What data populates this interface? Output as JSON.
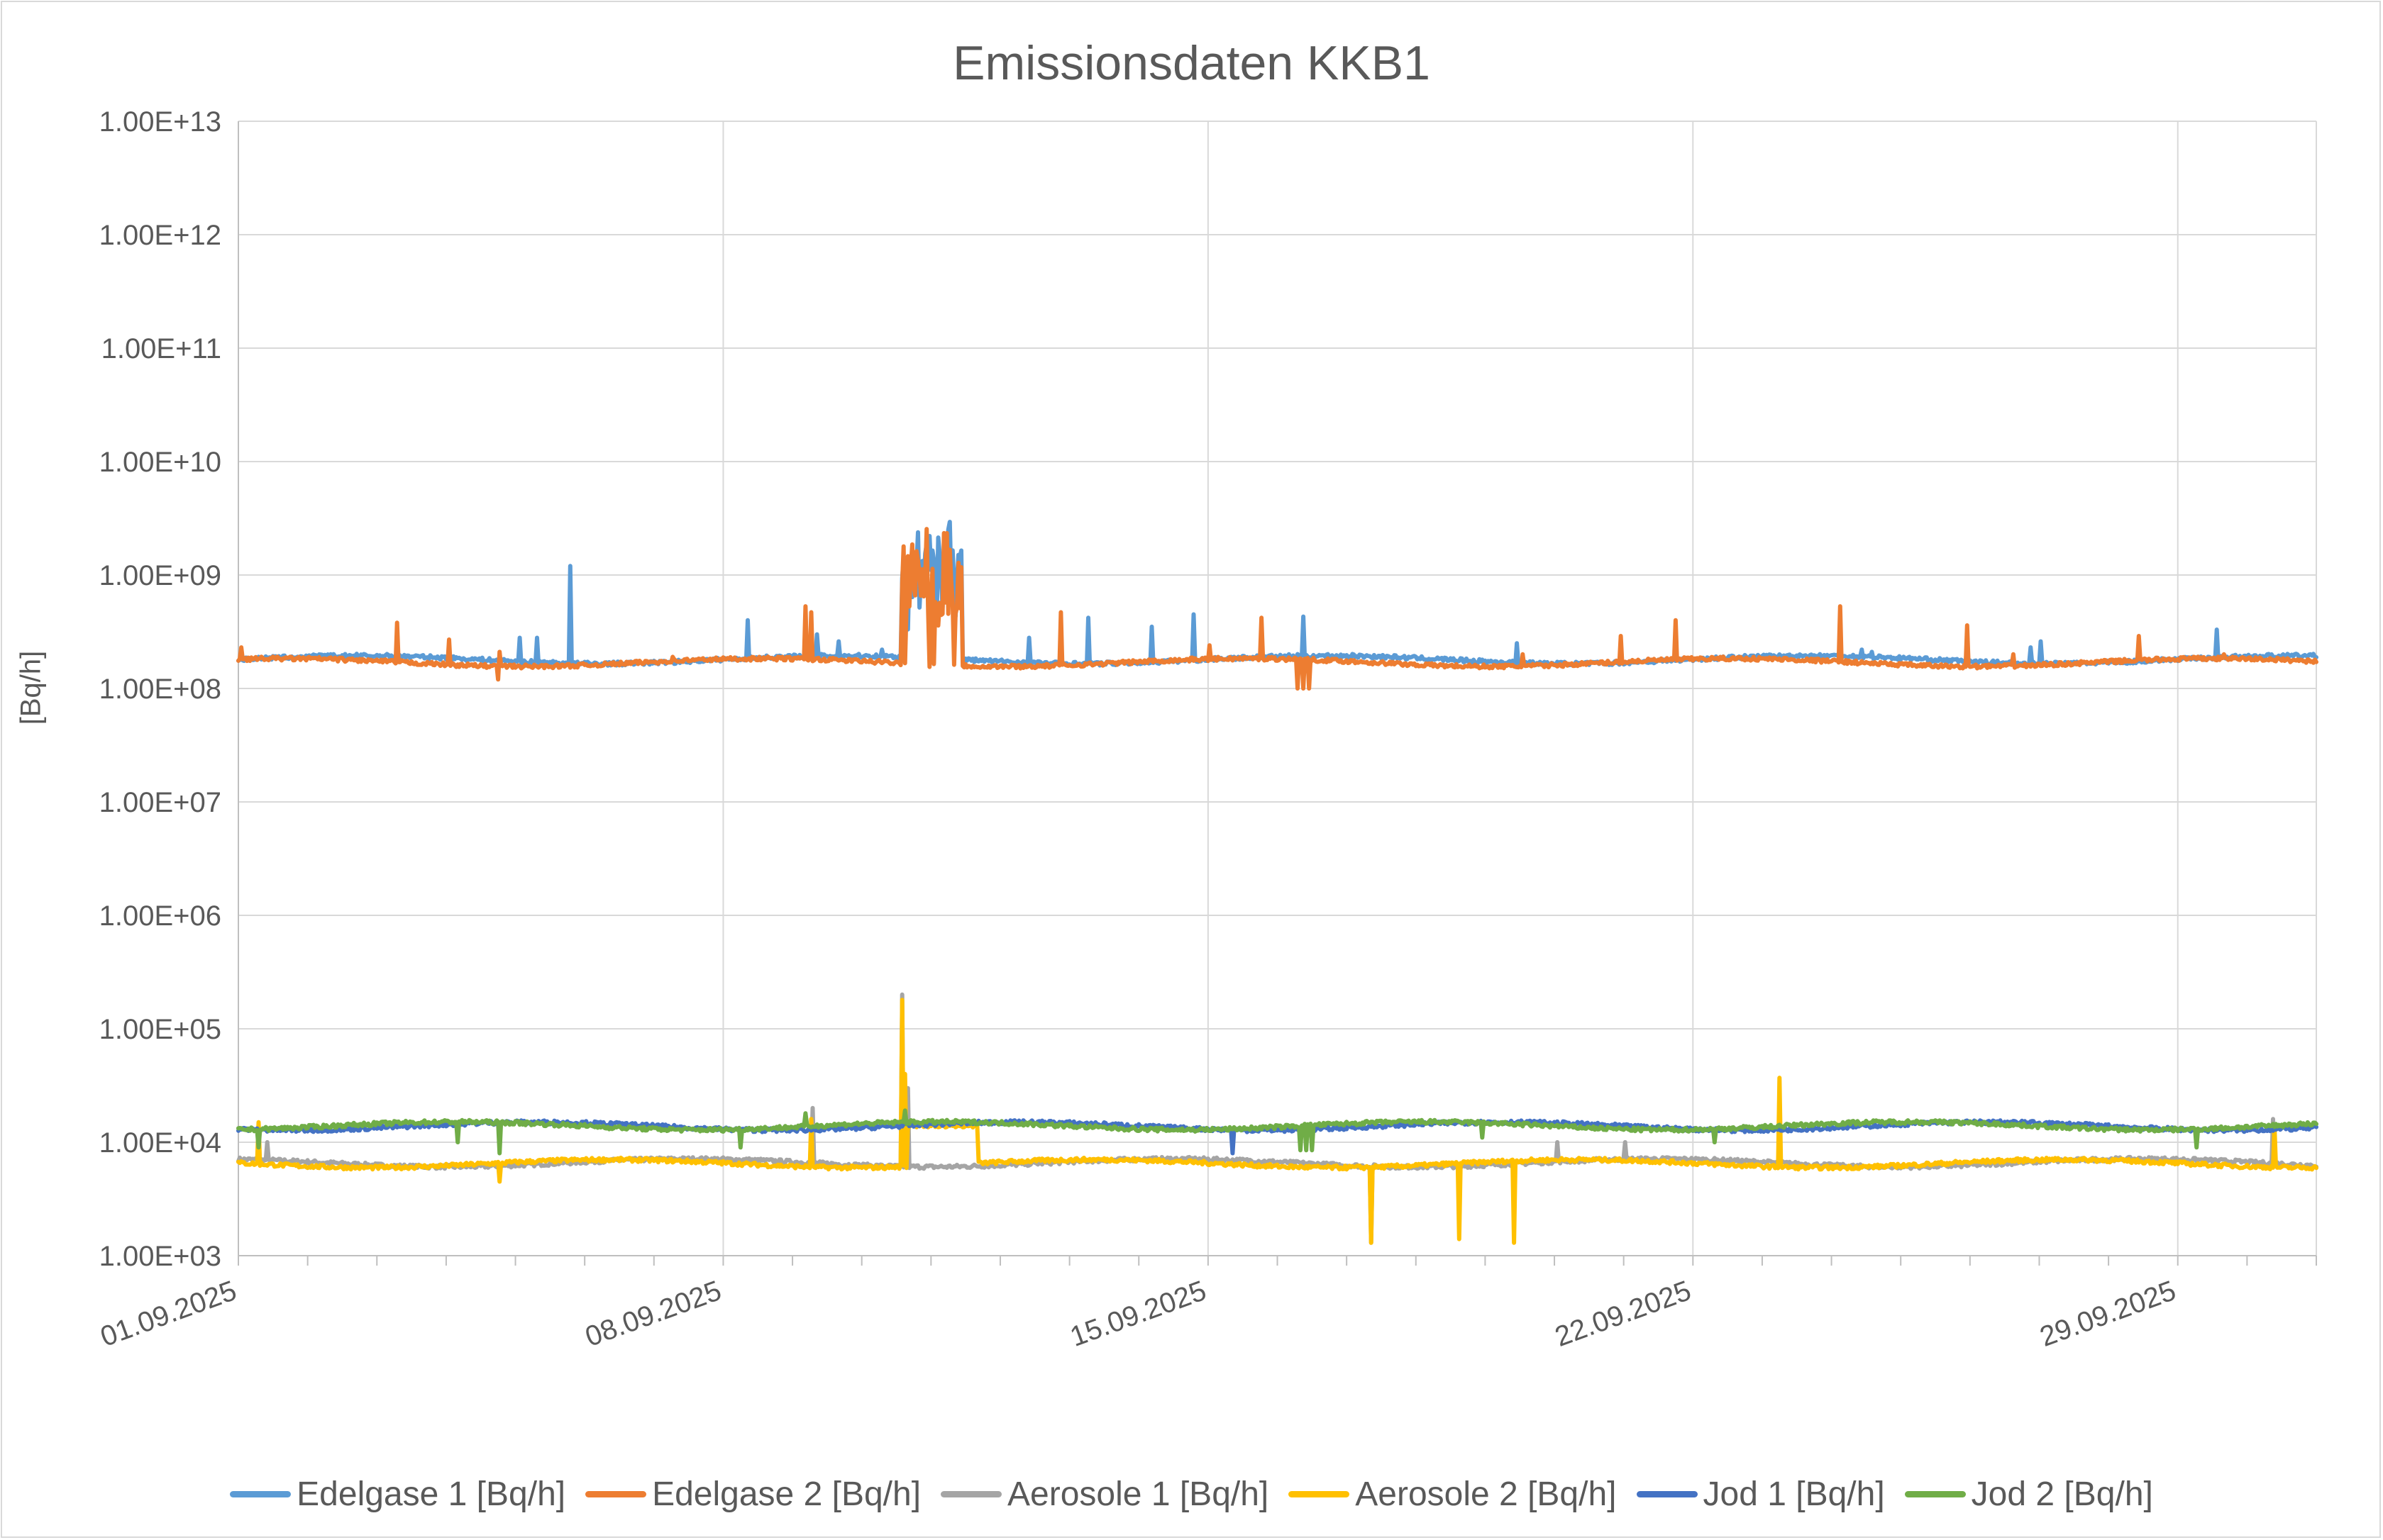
{
  "chart_data": {
    "type": "line",
    "title": "Emissionsdaten KKB1",
    "ylabel": "[Bq/h]",
    "xlabel": "",
    "yscale": "log",
    "ylim": [
      1000.0,
      10000000000000.0
    ],
    "xlim": [
      "2025-09-01T00:00",
      "2025-10-01T00:00"
    ],
    "y_tick_labels": [
      "1.00E+03",
      "1.00E+04",
      "1.00E+05",
      "1.00E+06",
      "1.00E+07",
      "1.00E+08",
      "1.00E+09",
      "1.00E+10",
      "1.00E+11",
      "1.00E+12",
      "1.00E+13"
    ],
    "x_tick_labels": [
      "01.09.2025",
      "08.09.2025",
      "15.09.2025",
      "22.09.2025",
      "29.09.2025"
    ],
    "grid": true,
    "legend_position": "bottom",
    "series": [
      {
        "name": "Edelgase 1 [Bq/h]",
        "color": "#5B9BD5",
        "baseline": 180000000.0,
        "burst": {
          "from": "2025-09-10T13:40",
          "to": "2025-09-11T10:50",
          "min": 300000000.0,
          "max": 3100000000.0
        },
        "spikes": [
          [
            "2025-09-05T01:30",
            280000000.0
          ],
          [
            "2025-09-05T07:40",
            280000000.0
          ],
          [
            "2025-09-05T19:10",
            1200000000.0
          ],
          [
            "2025-09-08T08:20",
            400000000.0
          ],
          [
            "2025-09-09T08:40",
            300000000.0
          ],
          [
            "2025-09-09T16:00",
            260000000.0
          ],
          [
            "2025-09-10T07:00",
            220000000.0
          ],
          [
            "2025-09-12T09:50",
            280000000.0
          ],
          [
            "2025-09-13T06:30",
            420000000.0
          ],
          [
            "2025-09-14T04:30",
            350000000.0
          ],
          [
            "2025-09-14T19:10",
            450000000.0
          ],
          [
            "2025-09-16T09:10",
            430000000.0
          ],
          [
            "2025-09-19T10:50",
            250000000.0
          ],
          [
            "2025-09-24T10:30",
            220000000.0
          ],
          [
            "2025-09-24T14:00",
            210000000.0
          ],
          [
            "2025-09-26T21:00",
            230000000.0
          ],
          [
            "2025-09-27T00:40",
            260000000.0
          ],
          [
            "2025-09-29T13:40",
            330000000.0
          ]
        ]
      },
      {
        "name": "Edelgase 2 [Bq/h]",
        "color": "#ED7D31",
        "baseline": 170000000.0,
        "burst": {
          "from": "2025-09-10T13:40",
          "to": "2025-09-11T10:50",
          "min": 140000000.0,
          "max": 2600000000.0
        },
        "spikes": [
          [
            "2025-09-01T01:00",
            230000000.0
          ],
          [
            "2025-09-03T07:10",
            380000000.0
          ],
          [
            "2025-09-04T01:10",
            270000000.0
          ],
          [
            "2025-09-04T18:00",
            120000000.0
          ],
          [
            "2025-09-04T18:30",
            210000000.0
          ],
          [
            "2025-09-07T06:40",
            190000000.0
          ],
          [
            "2025-09-09T04:30",
            530000000.0
          ],
          [
            "2025-09-09T06:40",
            470000000.0
          ],
          [
            "2025-09-12T20:50",
            470000000.0
          ],
          [
            "2025-09-15T00:30",
            240000000.0
          ],
          [
            "2025-09-15T18:30",
            420000000.0
          ],
          [
            "2025-09-16T07:00",
            100000000.0
          ],
          [
            "2025-09-16T09:00",
            100000000.0
          ],
          [
            "2025-09-16T11:00",
            100000000.0
          ],
          [
            "2025-09-19T13:00",
            200000000.0
          ],
          [
            "2025-09-20T22:50",
            290000000.0
          ],
          [
            "2025-09-21T17:50",
            400000000.0
          ],
          [
            "2025-09-24T03:10",
            530000000.0
          ],
          [
            "2025-09-25T22:50",
            360000000.0
          ],
          [
            "2025-09-26T15:00",
            200000000.0
          ],
          [
            "2025-09-28T10:20",
            290000000.0
          ],
          [
            "2025-09-29T16:00",
            200000000.0
          ]
        ]
      },
      {
        "name": "Aerosole 1 [Bq/h]",
        "color": "#A5A5A5",
        "baseline": 6600.0,
        "spikes": [
          [
            "2025-09-01T09:50",
            10000.0
          ],
          [
            "2025-09-09T07:00",
            20000.0
          ],
          [
            "2025-09-10T14:10",
            200000.0
          ],
          [
            "2025-09-10T16:00",
            30000.0
          ],
          [
            "2025-09-17T08:20",
            1300.0
          ],
          [
            "2025-09-20T00:50",
            10000.0
          ],
          [
            "2025-09-21T00:40",
            10000.0
          ],
          [
            "2025-09-30T09:00",
            16000.0
          ]
        ]
      },
      {
        "name": "Aerosole 2 [Bq/h]",
        "color": "#FFC000",
        "baseline": 6500.0,
        "burst": {
          "from": "2025-09-10T16:00",
          "to": "2025-09-11T16:00",
          "min": 13500.0,
          "max": 14500.0
        },
        "spikes": [
          [
            "2025-09-01T07:00",
            15000.0
          ],
          [
            "2025-09-04T18:40",
            4500.0
          ],
          [
            "2025-09-09T06:40",
            16000.0
          ],
          [
            "2025-09-10T14:10",
            180000.0
          ],
          [
            "2025-09-10T15:00",
            40000.0
          ],
          [
            "2025-09-17T08:20",
            1300.0
          ],
          [
            "2025-09-18T14:50",
            1400.0
          ],
          [
            "2025-09-19T09:50",
            1300.0
          ],
          [
            "2025-09-23T06:00",
            37000.0
          ],
          [
            "2025-09-30T09:20",
            14000.0
          ]
        ]
      },
      {
        "name": "Jod 1 [Bq/h]",
        "color": "#4472C4",
        "baseline": 13900.0,
        "spikes": [
          [
            "2025-09-15T08:30",
            8000.0
          ]
        ]
      },
      {
        "name": "Jod 2 [Bq/h]",
        "color": "#70AD47",
        "baseline": 14000.0,
        "spikes": [
          [
            "2025-09-01T07:00",
            9000.0
          ],
          [
            "2025-09-04T04:00",
            10000.0
          ],
          [
            "2025-09-04T18:40",
            8000.0
          ],
          [
            "2025-09-08T06:00",
            9000.0
          ],
          [
            "2025-09-09T04:20",
            18000.0
          ],
          [
            "2025-09-10T15:00",
            19000.0
          ],
          [
            "2025-09-16T08:00",
            8500.0
          ],
          [
            "2025-09-16T10:00",
            8500.0
          ],
          [
            "2025-09-16T12:00",
            8500.0
          ],
          [
            "2025-09-18T23:10",
            11000.0
          ],
          [
            "2025-09-22T07:40",
            10000.0
          ],
          [
            "2025-09-29T06:40",
            9000.0
          ]
        ]
      }
    ]
  }
}
